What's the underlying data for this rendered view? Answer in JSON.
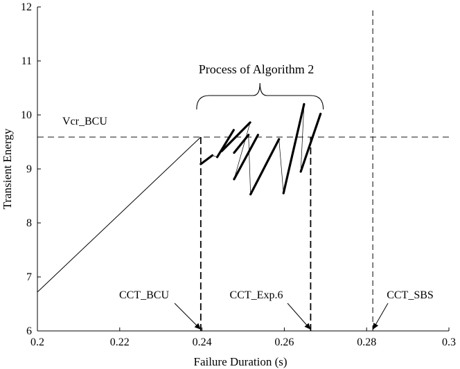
{
  "chart_data": {
    "type": "line",
    "title": "",
    "xlabel": "Failure Duration (s)",
    "ylabel": "Transient Energy",
    "xlim": [
      0.2,
      0.3
    ],
    "ylim": [
      6,
      12
    ],
    "x_ticks": [
      0.2,
      0.22,
      0.24,
      0.26,
      0.28,
      0.3
    ],
    "x_tick_labels": [
      "0.2",
      "0.22",
      "0.24",
      "0.26",
      "0.28",
      "0.3"
    ],
    "y_ticks": [
      6,
      7,
      8,
      9,
      10,
      11,
      12
    ],
    "y_tick_labels": [
      "6",
      "7",
      "8",
      "9",
      "10",
      "11",
      "12"
    ],
    "grid": false,
    "series": [
      {
        "style": "thin",
        "x": [
          0.2,
          0.2397
        ],
        "y": [
          6.72,
          9.59
        ]
      },
      {
        "style": "thick-segments",
        "segments": [
          [
            [
              0.2397,
              9.09
            ],
            [
              0.2425,
              9.25
            ]
          ],
          [
            [
              0.2437,
              9.22
            ],
            [
              0.2477,
              9.72
            ]
          ],
          [
            [
              0.2448,
              9.33
            ],
            [
              0.2517,
              9.86
            ]
          ],
          [
            [
              0.2478,
              9.3
            ],
            [
              0.2513,
              9.63
            ]
          ],
          [
            [
              0.2478,
              8.81
            ],
            [
              0.2536,
              9.63
            ]
          ],
          [
            [
              0.2518,
              8.53
            ],
            [
              0.2587,
              9.55
            ]
          ],
          [
            [
              0.2598,
              8.55
            ],
            [
              0.2648,
              10.2
            ]
          ],
          [
            [
              0.264,
              8.95
            ],
            [
              0.2688,
              10.02
            ]
          ]
        ]
      },
      {
        "style": "thin-segments",
        "segments": [
          [
            [
              0.2425,
              9.25
            ],
            [
              0.2437,
              9.22
            ]
          ],
          [
            [
              0.2477,
              9.72
            ],
            [
              0.2448,
              9.33
            ]
          ],
          [
            [
              0.2517,
              9.86
            ],
            [
              0.2478,
              8.81
            ]
          ],
          [
            [
              0.2513,
              9.63
            ],
            [
              0.2518,
              8.53
            ]
          ],
          [
            [
              0.2587,
              9.55
            ],
            [
              0.2598,
              8.55
            ]
          ],
          [
            [
              0.2648,
              10.2
            ],
            [
              0.264,
              8.95
            ]
          ]
        ]
      }
    ],
    "reference_lines": [
      {
        "orientation": "horizontal",
        "y": 9.59,
        "style": "dashed",
        "label": "Vcr_BCU"
      },
      {
        "orientation": "vertical",
        "x": 0.2397,
        "from_y": 6,
        "to_y": 9.59,
        "style": "dashed-bold",
        "label": "CCT_BCU"
      },
      {
        "orientation": "vertical",
        "x": 0.2664,
        "from_y": 6,
        "to_y": 9.59,
        "style": "dashed-bold",
        "label": "CCT_Exp.6"
      },
      {
        "orientation": "vertical",
        "x": 0.2815,
        "from_y": 6,
        "to_y": 12,
        "style": "dashed",
        "label": "CCT_SBS"
      }
    ],
    "annotations": {
      "vcr_label": "Vcr_BCU",
      "bracket_label": "Process of Algorithm 2",
      "bracket_range": [
        0.2397,
        0.2688
      ],
      "cct_bcu": "CCT_BCU",
      "cct_exp6": "CCT_Exp.6",
      "cct_sbs": "CCT_SBS"
    }
  }
}
